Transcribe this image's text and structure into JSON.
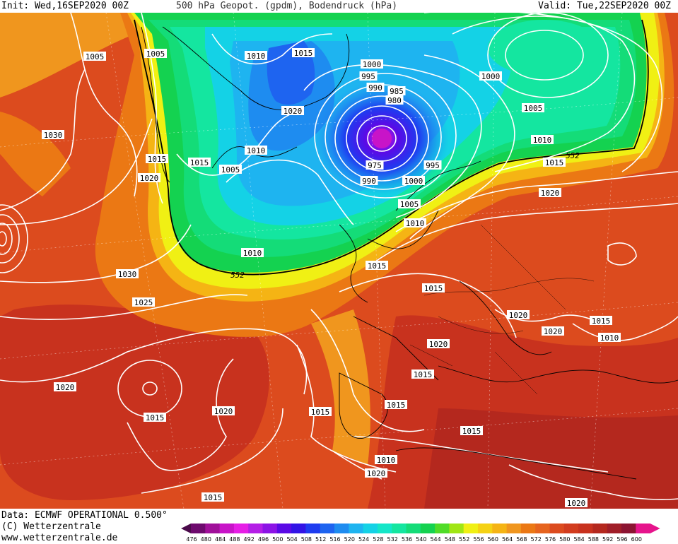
{
  "header": {
    "init": "Init: Wed,16SEP2020 00Z",
    "title": "500 hPa Geopot. (gpdm), Bodendruck (hPa)",
    "valid": "Valid: Tue,22SEP2020 00Z"
  },
  "footer": {
    "data_line": "Data: ECMWF OPERATIONAL 0.500°",
    "copyright": "(C) Wetterzentrale",
    "url": "www.wetterzentrale.de"
  },
  "colorbar": {
    "values": [
      "476",
      "480",
      "484",
      "488",
      "492",
      "496",
      "500",
      "504",
      "508",
      "512",
      "516",
      "520",
      "524",
      "528",
      "532",
      "536",
      "540",
      "544",
      "548",
      "552",
      "556",
      "560",
      "564",
      "568",
      "572",
      "576",
      "580",
      "584",
      "588",
      "592",
      "596",
      "600"
    ],
    "colors": [
      "#4b0a4b",
      "#6e0a6e",
      "#a0109a",
      "#c814c8",
      "#e61ee6",
      "#b41ee6",
      "#8c14e6",
      "#5a0ae6",
      "#3214e6",
      "#1e3cf0",
      "#1e64f0",
      "#1e8cf0",
      "#1eb4f0",
      "#14d2e6",
      "#14e6c8",
      "#14e6a0",
      "#14dc78",
      "#14d250",
      "#50dc28",
      "#a0e614",
      "#f0f014",
      "#f5d214",
      "#f5b414",
      "#f0961e",
      "#eb7814",
      "#e6641e",
      "#dc4b1e",
      "#d23c1e",
      "#c8321e",
      "#b4281e",
      "#a01e28",
      "#8c1432",
      "#e6148c"
    ]
  },
  "pressure_labels": [
    {
      "text": "1005"
    },
    {
      "text": "1005"
    },
    {
      "text": "1010"
    },
    {
      "text": "1015"
    },
    {
      "text": "1000"
    },
    {
      "text": "995"
    },
    {
      "text": "990"
    },
    {
      "text": "985"
    },
    {
      "text": "980"
    },
    {
      "text": "1000"
    },
    {
      "text": "1005"
    },
    {
      "text": "1010"
    },
    {
      "text": "1030"
    },
    {
      "text": "1020"
    },
    {
      "text": "1015"
    },
    {
      "text": "1020"
    },
    {
      "text": "1015"
    },
    {
      "text": "1010"
    },
    {
      "text": "1005"
    },
    {
      "text": "975"
    },
    {
      "text": "995"
    },
    {
      "text": "990"
    },
    {
      "text": "1000"
    },
    {
      "text": "1015"
    },
    {
      "text": "1020"
    },
    {
      "text": "1005"
    },
    {
      "text": "1010"
    },
    {
      "text": "1010"
    },
    {
      "text": "1030"
    },
    {
      "text": "1015"
    },
    {
      "text": "1025"
    },
    {
      "text": "1015"
    },
    {
      "text": "1020"
    },
    {
      "text": "1015"
    },
    {
      "text": "1020"
    },
    {
      "text": "1010"
    },
    {
      "text": "1020"
    },
    {
      "text": "1015"
    },
    {
      "text": "1020"
    },
    {
      "text": "1015"
    },
    {
      "text": "1015"
    },
    {
      "text": "1020"
    },
    {
      "text": "1015"
    },
    {
      "text": "1015"
    },
    {
      "text": "1010"
    },
    {
      "text": "1020"
    },
    {
      "text": "1015"
    },
    {
      "text": "1020"
    }
  ],
  "contour_labels": [
    {
      "text": "552"
    },
    {
      "text": "552"
    }
  ]
}
